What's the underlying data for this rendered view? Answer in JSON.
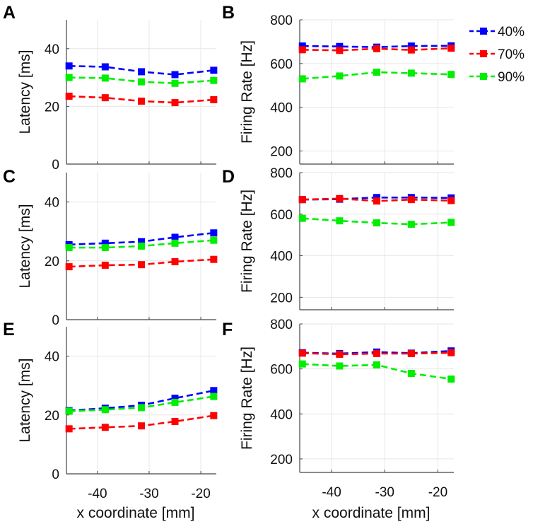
{
  "figure": {
    "legend": [
      {
        "label": "40%",
        "color": "#0000ff"
      },
      {
        "label": "70%",
        "color": "#ff0000"
      },
      {
        "label": "90%",
        "color": "#00ee00"
      }
    ],
    "xlabel": "x coordinate [mm]"
  },
  "chart_data": [
    {
      "panel": "A",
      "type": "line",
      "title": "",
      "xlabel": "",
      "ylabel": "Latency [ms]",
      "xlim": [
        -46,
        -17
      ],
      "ylim": [
        0,
        50
      ],
      "yticks": [
        0,
        20,
        40
      ],
      "xticks": [],
      "x": [
        -45.5,
        -38.5,
        -31.5,
        -25,
        -17.5
      ],
      "series": [
        {
          "name": "40%",
          "values": [
            34,
            33.7,
            32,
            31,
            32.5
          ]
        },
        {
          "name": "70%",
          "values": [
            23.5,
            23,
            21.8,
            21.3,
            22.3
          ]
        },
        {
          "name": "90%",
          "values": [
            30,
            29.8,
            28.5,
            28,
            29
          ]
        }
      ]
    },
    {
      "panel": "B",
      "type": "line",
      "title": "",
      "xlabel": "",
      "ylabel": "Firing Rate [Hz]",
      "xlim": [
        -46,
        -17
      ],
      "ylim": [
        140,
        800
      ],
      "yticks": [
        200,
        400,
        600,
        800
      ],
      "xticks": [],
      "x": [
        -45.5,
        -38.5,
        -31.5,
        -25,
        -17.5
      ],
      "series": [
        {
          "name": "40%",
          "values": [
            680,
            678,
            675,
            680,
            681
          ]
        },
        {
          "name": "70%",
          "values": [
            663,
            660,
            668,
            662,
            670
          ]
        },
        {
          "name": "90%",
          "values": [
            530,
            543,
            560,
            556,
            550
          ]
        }
      ]
    },
    {
      "panel": "C",
      "type": "line",
      "title": "",
      "xlabel": "",
      "ylabel": "Latency [ms]",
      "xlim": [
        -46,
        -17
      ],
      "ylim": [
        0,
        50
      ],
      "yticks": [
        0,
        20,
        40
      ],
      "xticks": [],
      "x": [
        -45.5,
        -38.5,
        -31.5,
        -25,
        -17.5
      ],
      "series": [
        {
          "name": "40%",
          "values": [
            25.5,
            26,
            26.5,
            28,
            29.5
          ]
        },
        {
          "name": "70%",
          "values": [
            18,
            18.5,
            18.7,
            19.7,
            20.5
          ]
        },
        {
          "name": "90%",
          "values": [
            24.5,
            24.5,
            25,
            26,
            27
          ]
        }
      ]
    },
    {
      "panel": "D",
      "type": "line",
      "title": "",
      "xlabel": "",
      "ylabel": "Firing Rate [Hz]",
      "xlim": [
        -46,
        -17
      ],
      "ylim": [
        140,
        800
      ],
      "yticks": [
        200,
        400,
        600,
        800
      ],
      "xticks": [],
      "x": [
        -45.5,
        -38.5,
        -31.5,
        -25,
        -17.5
      ],
      "series": [
        {
          "name": "40%",
          "values": [
            670,
            672,
            680,
            680,
            678
          ]
        },
        {
          "name": "70%",
          "values": [
            670,
            675,
            663,
            670,
            665
          ]
        },
        {
          "name": "90%",
          "values": [
            580,
            568,
            558,
            551,
            560
          ]
        }
      ]
    },
    {
      "panel": "E",
      "type": "line",
      "title": "",
      "xlabel": "x coordinate [mm]",
      "ylabel": "Latency [ms]",
      "xlim": [
        -46,
        -17
      ],
      "ylim": [
        0,
        50
      ],
      "yticks": [
        0,
        20,
        40
      ],
      "xticks": [
        -40,
        -30,
        -20
      ],
      "x": [
        -45.5,
        -38.5,
        -31.5,
        -25,
        -17.5
      ],
      "series": [
        {
          "name": "40%",
          "values": [
            21.5,
            22.3,
            23.3,
            25.7,
            28.3
          ]
        },
        {
          "name": "70%",
          "values": [
            15.3,
            15.8,
            16.3,
            17.8,
            19.8
          ]
        },
        {
          "name": "90%",
          "values": [
            21.3,
            21.8,
            22.5,
            24.3,
            26.3
          ]
        }
      ]
    },
    {
      "panel": "F",
      "type": "line",
      "title": "",
      "xlabel": "x coordinate [mm]",
      "ylabel": "Firing Rate [Hz]",
      "xlim": [
        -46,
        -17
      ],
      "ylim": [
        140,
        800
      ],
      "yticks": [
        200,
        400,
        600,
        800
      ],
      "xticks": [
        -40,
        -30,
        -20
      ],
      "x": [
        -45.5,
        -38.5,
        -31.5,
        -25,
        -17.5
      ],
      "series": [
        {
          "name": "40%",
          "values": [
            672,
            668,
            675,
            670,
            680
          ]
        },
        {
          "name": "70%",
          "values": [
            670,
            665,
            668,
            668,
            672
          ]
        },
        {
          "name": "90%",
          "values": [
            622,
            613,
            618,
            580,
            555
          ]
        }
      ]
    }
  ]
}
